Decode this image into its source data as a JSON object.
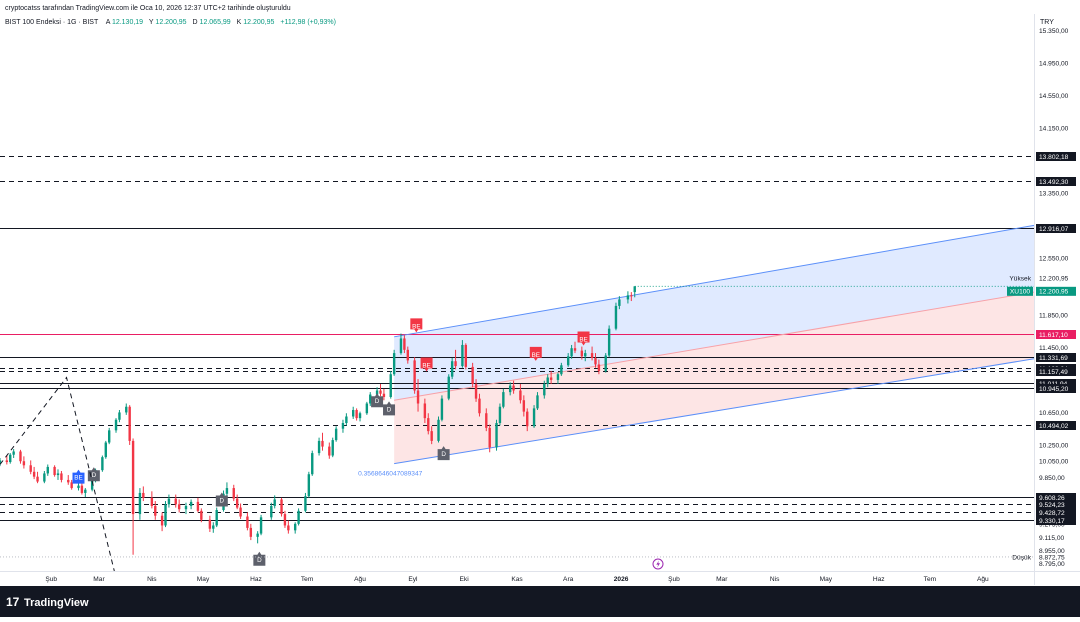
{
  "attribution": "cryptocatss tarafından TradingView.com ile Oca 10, 2026 12:37 UTC+2 tarihinde oluşturuldu",
  "header": {
    "symbol": "BIST 100 Endeksi · 1G · BIST",
    "ohlc": [
      {
        "label": "A",
        "value": "12.130,19"
      },
      {
        "label": "Y",
        "value": "12.200,95"
      },
      {
        "label": "D",
        "value": "12.065,99"
      },
      {
        "label": "K",
        "value": "12.200,95"
      }
    ],
    "change": "+112,98 (+0,93%)"
  },
  "currency": "TRY",
  "footer": {
    "logo_text": "TradingView",
    "logo_mark": "17"
  },
  "colors": {
    "up": "#089981",
    "down": "#f23645",
    "price_tag": "#089981",
    "channel_line": "#5b8ff9",
    "channel_fill_top": "#dbe6ff",
    "channel_fill_bottom": "#fde0e0",
    "magenta_line": "#e91e63",
    "level_tag": "#131722",
    "bear_badge": "#f23645",
    "bull_badge": "#2962ff",
    "d_badge": "#5d606b"
  },
  "chart_data": {
    "type": "candlestick",
    "y_range": [
      8700,
      15550
    ],
    "x_range": [
      "2025-01-02",
      "2026-08-31"
    ],
    "price_axis_ticks": [
      "15.350,00",
      "14.950,00",
      "14.550,00",
      "14.150,00",
      "13.350,00",
      "12.550,00",
      "11.850,00",
      "11.450,00",
      "10.650,00",
      "10.250,00",
      "10.050,00",
      "9.850,00",
      "9.275,00",
      "9.115,00",
      "8.955,00",
      "8.795,00"
    ],
    "time_axis": [
      {
        "date": "2025-02-01",
        "label": "Şub"
      },
      {
        "date": "2025-03-01",
        "label": "Mar"
      },
      {
        "date": "2025-04-01",
        "label": "Nis"
      },
      {
        "date": "2025-05-01",
        "label": "May"
      },
      {
        "date": "2025-06-01",
        "label": "Haz"
      },
      {
        "date": "2025-07-01",
        "label": "Tem"
      },
      {
        "date": "2025-08-01",
        "label": "Ağu"
      },
      {
        "date": "2025-09-01",
        "label": "Eyl"
      },
      {
        "date": "2025-10-01",
        "label": "Eki"
      },
      {
        "date": "2025-11-01",
        "label": "Kas"
      },
      {
        "date": "2025-12-01",
        "label": "Ara"
      },
      {
        "date": "2026-01-01",
        "label": "2026",
        "bold": true
      },
      {
        "date": "2026-02-01",
        "label": "Şub"
      },
      {
        "date": "2026-03-01",
        "label": "Mar"
      },
      {
        "date": "2026-04-01",
        "label": "Nis"
      },
      {
        "date": "2026-05-01",
        "label": "May"
      },
      {
        "date": "2026-06-01",
        "label": "Haz"
      },
      {
        "date": "2026-07-01",
        "label": "Tem"
      },
      {
        "date": "2026-08-01",
        "label": "Ağu"
      }
    ],
    "levels": [
      {
        "value": 13802.18,
        "label": "13.802,18",
        "style": "dashed"
      },
      {
        "value": 13492.3,
        "label": "13.492,30",
        "style": "dashed"
      },
      {
        "value": 12916.07,
        "label": "12.916,07",
        "style": "solid"
      },
      {
        "value": 11617.1,
        "label": "11.617,10",
        "style": "solid",
        "color": "#e91e63"
      },
      {
        "value": 11331.69,
        "label": "11.331,69",
        "style": "solid"
      },
      {
        "value": 11193.04,
        "label": "11.193,04",
        "style": "dashed"
      },
      {
        "value": 11157.49,
        "label": "11.157,49",
        "style": "dashed"
      },
      {
        "value": 11011.94,
        "label": "11.011,94",
        "style": "solid"
      },
      {
        "value": 10945.2,
        "label": "10.945,20",
        "style": "solid"
      },
      {
        "value": 10494.02,
        "label": "10.494,02",
        "style": "dashed"
      },
      {
        "value": 9608.26,
        "label": "9.608,26",
        "style": "solid"
      },
      {
        "value": 9524.23,
        "label": "9.524,23",
        "style": "dashed"
      },
      {
        "value": 9428.72,
        "label": "9.428,72",
        "style": "dashed"
      },
      {
        "value": 9330.17,
        "label": "9.330,17",
        "style": "solid"
      }
    ],
    "price_tag": {
      "symbol": "XU100",
      "value": 12200.95,
      "label": "12.200,95",
      "high_caption": "Yüksek",
      "high_label": "12.200,95"
    },
    "low_tag": {
      "value": 8872.75,
      "caption": "Düşük",
      "label": "8.872,75"
    },
    "channel": {
      "upper": [
        {
          "date": "2025-08-21",
          "value": 11580
        },
        {
          "date": "2026-08-31",
          "value": 12950
        }
      ],
      "lower": [
        {
          "date": "2025-08-21",
          "value": 10020
        },
        {
          "date": "2026-08-31",
          "value": 11310
        }
      ],
      "mid": [
        {
          "date": "2025-08-21",
          "value": 10800
        },
        {
          "date": "2026-08-31",
          "value": 12130
        }
      ],
      "fib_label": "0.3568646047089347"
    },
    "dashed_trend": [
      {
        "date": "2025-01-02",
        "value": 10010
      },
      {
        "date": "2025-02-10",
        "value": 11080
      },
      {
        "date": "2025-03-10",
        "value": 8700
      }
    ],
    "badges": [
      {
        "date": "2025-02-17",
        "value": 9860,
        "text": "BE",
        "kind": "bull"
      },
      {
        "date": "2025-02-26",
        "value": 9890,
        "text": "D",
        "kind": "d"
      },
      {
        "date": "2025-05-12",
        "value": 9580,
        "text": "D",
        "kind": "d"
      },
      {
        "date": "2025-06-03",
        "value": 8850,
        "text": "D",
        "kind": "d"
      },
      {
        "date": "2025-08-11",
        "value": 10800,
        "text": "D",
        "kind": "d"
      },
      {
        "date": "2025-08-18",
        "value": 10700,
        "text": "D",
        "kind": "d"
      },
      {
        "date": "2025-09-03",
        "value": 11720,
        "text": "BE",
        "kind": "bear"
      },
      {
        "date": "2025-09-09",
        "value": 11240,
        "text": "BE",
        "kind": "bear"
      },
      {
        "date": "2025-09-19",
        "value": 10150,
        "text": "D",
        "kind": "d"
      },
      {
        "date": "2025-11-12",
        "value": 11370,
        "text": "BE",
        "kind": "bear"
      },
      {
        "date": "2025-12-10",
        "value": 11560,
        "text": "BE",
        "kind": "bear"
      }
    ],
    "candles": [
      [
        "2025-01-02",
        10030,
        10090,
        9990,
        10060
      ],
      [
        "2025-01-06",
        10060,
        10120,
        10010,
        10040
      ],
      [
        "2025-01-08",
        10040,
        10150,
        10020,
        10130
      ],
      [
        "2025-01-10",
        10130,
        10200,
        10090,
        10170
      ],
      [
        "2025-01-14",
        10170,
        10190,
        10020,
        10050
      ],
      [
        "2025-01-16",
        10050,
        10110,
        9960,
        10000
      ],
      [
        "2025-01-20",
        10000,
        10060,
        9890,
        9920
      ],
      [
        "2025-01-22",
        9920,
        9980,
        9830,
        9860
      ],
      [
        "2025-01-24",
        9860,
        9920,
        9780,
        9800
      ],
      [
        "2025-01-28",
        9800,
        9930,
        9780,
        9900
      ],
      [
        "2025-01-30",
        9900,
        10010,
        9870,
        9980
      ],
      [
        "2025-02-03",
        9980,
        10000,
        9860,
        9880
      ],
      [
        "2025-02-05",
        9880,
        9950,
        9820,
        9900
      ],
      [
        "2025-02-07",
        9900,
        9930,
        9790,
        9820
      ],
      [
        "2025-02-11",
        9820,
        9880,
        9760,
        9790
      ],
      [
        "2025-02-13",
        9790,
        9820,
        9700,
        9720
      ],
      [
        "2025-02-17",
        9720,
        9780,
        9690,
        9750
      ],
      [
        "2025-02-19",
        9750,
        9790,
        9640,
        9660
      ],
      [
        "2025-02-21",
        9660,
        9720,
        9610,
        9700
      ],
      [
        "2025-02-25",
        9700,
        9830,
        9680,
        9810
      ],
      [
        "2025-02-27",
        9810,
        9960,
        9790,
        9940
      ],
      [
        "2025-03-03",
        9940,
        10120,
        9920,
        10100
      ],
      [
        "2025-03-05",
        10100,
        10300,
        10080,
        10280
      ],
      [
        "2025-03-07",
        10280,
        10460,
        10260,
        10430
      ],
      [
        "2025-03-11",
        10430,
        10580,
        10400,
        10560
      ],
      [
        "2025-03-13",
        10560,
        10680,
        10530,
        10650
      ],
      [
        "2025-03-17",
        10650,
        10760,
        10620,
        10720
      ],
      [
        "2025-03-19",
        10720,
        10740,
        10250,
        10300
      ],
      [
        "2025-03-21",
        10300,
        10330,
        8900,
        9400
      ],
      [
        "2025-03-25",
        9400,
        9720,
        9330,
        9660
      ],
      [
        "2025-03-27",
        9660,
        9740,
        9560,
        9600
      ],
      [
        "2025-04-01",
        9600,
        9680,
        9470,
        9500
      ],
      [
        "2025-04-03",
        9500,
        9560,
        9330,
        9380
      ],
      [
        "2025-04-07",
        9380,
        9420,
        9190,
        9260
      ],
      [
        "2025-04-09",
        9260,
        9560,
        9240,
        9520
      ],
      [
        "2025-04-11",
        9520,
        9640,
        9480,
        9590
      ],
      [
        "2025-04-15",
        9590,
        9640,
        9480,
        9520
      ],
      [
        "2025-04-17",
        9520,
        9580,
        9420,
        9460
      ],
      [
        "2025-04-21",
        9460,
        9540,
        9400,
        9500
      ],
      [
        "2025-04-24",
        9500,
        9580,
        9460,
        9550
      ],
      [
        "2025-04-28",
        9550,
        9600,
        9420,
        9440
      ],
      [
        "2025-04-30",
        9440,
        9470,
        9300,
        9330
      ],
      [
        "2025-05-05",
        9330,
        9380,
        9180,
        9220
      ],
      [
        "2025-05-07",
        9220,
        9300,
        9170,
        9260
      ],
      [
        "2025-05-09",
        9260,
        9480,
        9240,
        9450
      ],
      [
        "2025-05-13",
        9450,
        9690,
        9430,
        9650
      ],
      [
        "2025-05-15",
        9650,
        9790,
        9600,
        9720
      ],
      [
        "2025-05-19",
        9720,
        9760,
        9560,
        9590
      ],
      [
        "2025-05-21",
        9590,
        9640,
        9460,
        9480
      ],
      [
        "2025-05-23",
        9480,
        9530,
        9340,
        9370
      ],
      [
        "2025-05-27",
        9370,
        9420,
        9200,
        9230
      ],
      [
        "2025-05-29",
        9230,
        9280,
        9080,
        9120
      ],
      [
        "2025-06-02",
        9120,
        9190,
        9040,
        9160
      ],
      [
        "2025-06-04",
        9160,
        9390,
        9140,
        9360
      ],
      [
        "2025-06-10",
        9360,
        9540,
        9330,
        9500
      ],
      [
        "2025-06-12",
        9500,
        9630,
        9470,
        9580
      ],
      [
        "2025-06-16",
        9580,
        9600,
        9370,
        9400
      ],
      [
        "2025-06-18",
        9400,
        9440,
        9230,
        9260
      ],
      [
        "2025-06-20",
        9260,
        9320,
        9160,
        9200
      ],
      [
        "2025-06-24",
        9200,
        9300,
        9160,
        9280
      ],
      [
        "2025-06-26",
        9280,
        9470,
        9260,
        9440
      ],
      [
        "2025-06-30",
        9440,
        9660,
        9420,
        9620
      ],
      [
        "2025-07-02",
        9620,
        9920,
        9600,
        9890
      ],
      [
        "2025-07-04",
        9890,
        10180,
        9870,
        10150
      ],
      [
        "2025-07-08",
        10150,
        10340,
        10120,
        10300
      ],
      [
        "2025-07-10",
        10300,
        10400,
        10180,
        10230
      ],
      [
        "2025-07-14",
        10230,
        10280,
        10080,
        10120
      ],
      [
        "2025-07-16",
        10120,
        10340,
        10100,
        10310
      ],
      [
        "2025-07-18",
        10310,
        10480,
        10290,
        10450
      ],
      [
        "2025-07-22",
        10450,
        10560,
        10400,
        10520
      ],
      [
        "2025-07-24",
        10520,
        10640,
        10490,
        10600
      ],
      [
        "2025-07-28",
        10600,
        10720,
        10570,
        10680
      ],
      [
        "2025-07-30",
        10680,
        10700,
        10550,
        10580
      ],
      [
        "2025-08-01",
        10580,
        10660,
        10540,
        10640
      ],
      [
        "2025-08-05",
        10640,
        10780,
        10620,
        10760
      ],
      [
        "2025-08-07",
        10760,
        10900,
        10730,
        10870
      ],
      [
        "2025-08-11",
        10870,
        10960,
        10820,
        10920
      ],
      [
        "2025-08-13",
        10920,
        11000,
        10850,
        10880
      ],
      [
        "2025-08-15",
        10880,
        10940,
        10800,
        10840
      ],
      [
        "2025-08-19",
        10840,
        11160,
        10820,
        11120
      ],
      [
        "2025-08-21",
        11120,
        11420,
        11100,
        11380
      ],
      [
        "2025-08-25",
        11380,
        11620,
        11360,
        11560
      ],
      [
        "2025-08-27",
        11560,
        11600,
        11380,
        11420
      ],
      [
        "2025-08-29",
        11420,
        11460,
        11250,
        11290
      ],
      [
        "2025-09-02",
        11290,
        11330,
        10880,
        10920
      ],
      [
        "2025-09-04",
        10920,
        11060,
        10660,
        10760
      ],
      [
        "2025-09-08",
        10760,
        10820,
        10520,
        10580
      ],
      [
        "2025-09-10",
        10580,
        10640,
        10380,
        10420
      ],
      [
        "2025-09-12",
        10420,
        10480,
        10260,
        10300
      ],
      [
        "2025-09-16",
        10300,
        10600,
        10280,
        10560
      ],
      [
        "2025-09-18",
        10560,
        10860,
        10540,
        10820
      ],
      [
        "2025-09-22",
        10820,
        11120,
        10800,
        11090
      ],
      [
        "2025-09-24",
        11090,
        11320,
        11060,
        11280
      ],
      [
        "2025-09-26",
        11280,
        11420,
        11180,
        11220
      ],
      [
        "2025-09-30",
        11220,
        11540,
        11200,
        11480
      ],
      [
        "2025-10-02",
        11480,
        11500,
        11180,
        11210
      ],
      [
        "2025-10-06",
        11210,
        11260,
        10960,
        11000
      ],
      [
        "2025-10-08",
        11000,
        11060,
        10780,
        10820
      ],
      [
        "2025-10-10",
        10820,
        10880,
        10600,
        10640
      ],
      [
        "2025-10-14",
        10640,
        10700,
        10420,
        10460
      ],
      [
        "2025-10-16",
        10460,
        10500,
        10160,
        10220
      ],
      [
        "2025-10-20",
        10220,
        10560,
        10180,
        10520
      ],
      [
        "2025-10-22",
        10520,
        10760,
        10490,
        10720
      ],
      [
        "2025-10-24",
        10720,
        10940,
        10700,
        10900
      ],
      [
        "2025-10-28",
        10900,
        11020,
        10860,
        10980
      ],
      [
        "2025-10-30",
        10980,
        11040,
        10880,
        10920
      ],
      [
        "2025-11-03",
        10920,
        11000,
        10760,
        10800
      ],
      [
        "2025-11-05",
        10800,
        10860,
        10600,
        10660
      ],
      [
        "2025-11-07",
        10660,
        10700,
        10420,
        10480
      ],
      [
        "2025-11-11",
        10480,
        10740,
        10460,
        10700
      ],
      [
        "2025-11-13",
        10700,
        10900,
        10680,
        10860
      ],
      [
        "2025-11-17",
        10860,
        11040,
        10820,
        11000
      ],
      [
        "2025-11-19",
        11000,
        11120,
        10960,
        11080
      ],
      [
        "2025-11-21",
        11080,
        11160,
        11000,
        11050
      ],
      [
        "2025-11-25",
        11050,
        11140,
        11000,
        11120
      ],
      [
        "2025-11-27",
        11120,
        11260,
        11100,
        11230
      ],
      [
        "2025-12-01",
        11230,
        11380,
        11210,
        11340
      ],
      [
        "2025-12-03",
        11340,
        11480,
        11310,
        11440
      ],
      [
        "2025-12-05",
        11440,
        11520,
        11380,
        11410
      ],
      [
        "2025-12-09",
        11410,
        11460,
        11300,
        11340
      ],
      [
        "2025-12-11",
        11340,
        11420,
        11280,
        11380
      ],
      [
        "2025-12-15",
        11380,
        11460,
        11290,
        11320
      ],
      [
        "2025-12-17",
        11320,
        11380,
        11200,
        11240
      ],
      [
        "2025-12-19",
        11240,
        11300,
        11120,
        11160
      ],
      [
        "2025-12-23",
        11160,
        11380,
        11140,
        11350
      ],
      [
        "2025-12-25",
        11350,
        11720,
        11330,
        11680
      ],
      [
        "2025-12-29",
        11680,
        12000,
        11660,
        11960
      ],
      [
        "2025-12-31",
        11960,
        12080,
        11920,
        12040
      ],
      [
        "2026-01-05",
        12040,
        12140,
        11990,
        12090
      ],
      [
        "2026-01-07",
        12090,
        12130,
        12020,
        12088
      ],
      [
        "2026-01-09",
        12130,
        12201,
        12066,
        12201
      ]
    ]
  }
}
